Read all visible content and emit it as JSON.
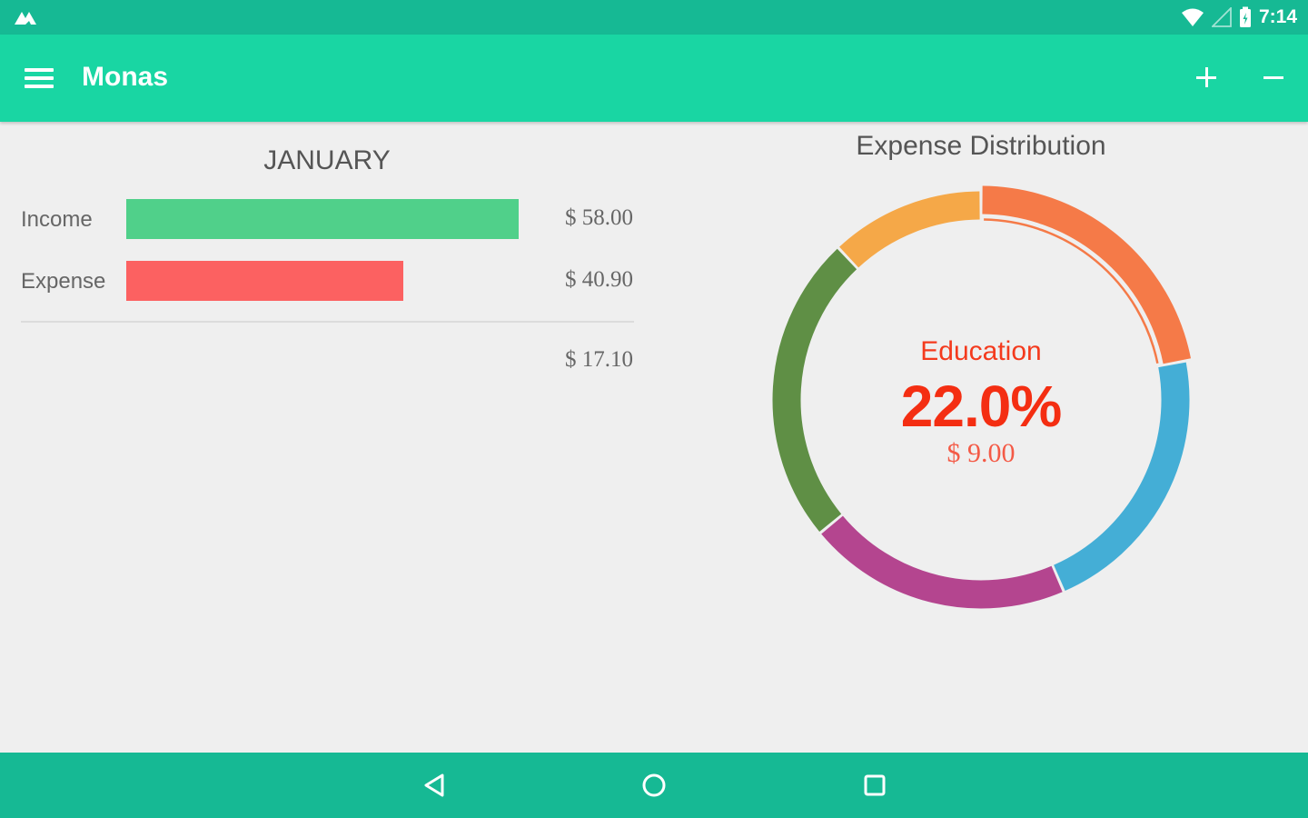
{
  "status_bar": {
    "time": "7:14",
    "icons": [
      "app-notification-icon",
      "wifi-icon",
      "cell-signal-icon",
      "battery-icon"
    ]
  },
  "app_bar": {
    "title": "Monas",
    "menu_icon": "hamburger-menu-icon",
    "actions": [
      "plus-icon",
      "minus-icon"
    ]
  },
  "summary": {
    "month": "JANUARY",
    "income": {
      "label": "Income",
      "amount": "$ 58.00",
      "value": 58.0,
      "color": "#50d08a"
    },
    "expense": {
      "label": "Expense",
      "amount": "$ 40.90",
      "value": 40.9,
      "color": "#fc6161"
    },
    "balance": "$ 17.10"
  },
  "chart_data": {
    "type": "pie",
    "title": "Expense Distribution",
    "selected": {
      "label": "Education",
      "percent": "22.0%",
      "amount": "$ 9.00"
    },
    "slices": [
      {
        "percent": 22.0,
        "color": "#f57a48"
      },
      {
        "percent": 21.5,
        "color": "#44aed6"
      },
      {
        "percent": 20.5,
        "color": "#b4458f"
      },
      {
        "percent": 24.0,
        "color": "#5f8f45"
      },
      {
        "percent": 12.0,
        "color": "#f5a848"
      }
    ]
  },
  "nav_bar": {
    "buttons": [
      "back-icon",
      "home-icon",
      "recents-icon"
    ]
  }
}
